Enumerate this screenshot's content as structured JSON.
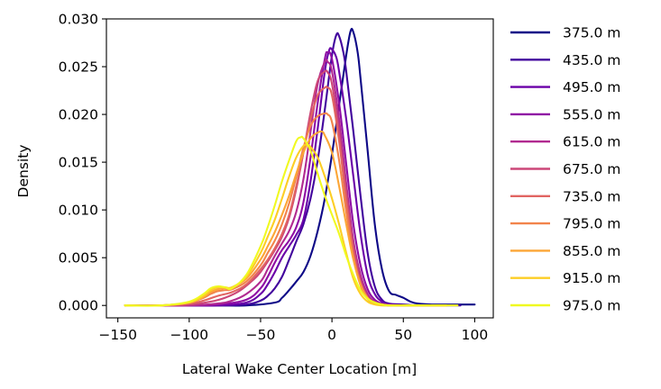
{
  "chart_data": {
    "type": "line",
    "title": "",
    "xlabel": "Lateral Wake Center Location [m]",
    "ylabel": "Density",
    "xlim": [
      -158,
      113
    ],
    "ylim": [
      -0.0013,
      0.03
    ],
    "xticks": [
      -150,
      -100,
      -50,
      0,
      50,
      100
    ],
    "xtick_labels": [
      "−150",
      "−100",
      "−50",
      "0",
      "50",
      "100"
    ],
    "yticks": [
      0.0,
      0.005,
      0.01,
      0.015,
      0.02,
      0.025,
      0.03
    ],
    "ytick_labels": [
      "0.000",
      "0.005",
      "0.010",
      "0.015",
      "0.020",
      "0.025",
      "0.030"
    ],
    "grid": false,
    "legend_position": "outside right",
    "series": [
      {
        "name": "375.0 m",
        "color": "#0d0887",
        "x": [
          -145,
          -120,
          -100,
          -80,
          -60,
          -40,
          -35,
          -30,
          -25,
          -20,
          -15,
          -10,
          -5,
          0,
          5,
          10,
          13,
          15,
          18,
          20,
          25,
          30,
          35,
          40,
          45,
          50,
          55,
          60,
          70,
          80,
          90,
          100
        ],
        "y": [
          0,
          0,
          0,
          0,
          0,
          0.0003,
          0.0008,
          0.0016,
          0.0025,
          0.0035,
          0.0052,
          0.0078,
          0.0112,
          0.0158,
          0.021,
          0.0262,
          0.0287,
          0.0286,
          0.0265,
          0.0238,
          0.0162,
          0.0085,
          0.0038,
          0.0015,
          0.0011,
          0.0008,
          0.0004,
          0.0002,
          0.0001,
          0.0001,
          0.0001,
          0.0001
        ]
      },
      {
        "name": "435.0 m",
        "color": "#41049d",
        "x": [
          -145,
          -120,
          -100,
          -80,
          -60,
          -50,
          -45,
          -40,
          -35,
          -30,
          -25,
          -20,
          -15,
          -10,
          -5,
          0,
          3,
          5,
          8,
          10,
          15,
          20,
          25,
          30,
          35,
          40,
          50,
          60,
          70,
          80,
          90
        ],
        "y": [
          0,
          0,
          0,
          0,
          0.0001,
          0.0005,
          0.001,
          0.0018,
          0.003,
          0.0048,
          0.0067,
          0.0085,
          0.0112,
          0.0152,
          0.0205,
          0.0262,
          0.0283,
          0.0282,
          0.0265,
          0.0245,
          0.0182,
          0.0115,
          0.0055,
          0.002,
          0.0006,
          0.0002,
          0.0001,
          0,
          0,
          0,
          0
        ]
      },
      {
        "name": "495.0 m",
        "color": "#6a00a8",
        "x": [
          -145,
          -120,
          -100,
          -80,
          -60,
          -50,
          -45,
          -40,
          -35,
          -30,
          -25,
          -20,
          -15,
          -10,
          -5,
          -2,
          0,
          3,
          5,
          10,
          15,
          20,
          25,
          30,
          35,
          40,
          50,
          60,
          70,
          80
        ],
        "y": [
          0,
          0,
          0,
          0,
          0.0003,
          0.0012,
          0.0022,
          0.0035,
          0.005,
          0.0062,
          0.0074,
          0.009,
          0.013,
          0.0185,
          0.0245,
          0.0267,
          0.0268,
          0.026,
          0.0245,
          0.0195,
          0.0135,
          0.0075,
          0.0032,
          0.0012,
          0.0004,
          0.0001,
          0,
          0,
          0,
          0
        ]
      },
      {
        "name": "555.0 m",
        "color": "#8f0da4",
        "x": [
          -145,
          -120,
          -100,
          -80,
          -60,
          -50,
          -45,
          -40,
          -35,
          -30,
          -25,
          -20,
          -15,
          -10,
          -5,
          -3,
          0,
          5,
          10,
          15,
          20,
          25,
          30,
          35,
          40,
          50,
          60,
          70,
          80
        ],
        "y": [
          0,
          0,
          0,
          0.0001,
          0.0006,
          0.0018,
          0.003,
          0.0045,
          0.0058,
          0.0068,
          0.0082,
          0.0108,
          0.0155,
          0.0212,
          0.0258,
          0.0265,
          0.0258,
          0.0212,
          0.0148,
          0.0085,
          0.0042,
          0.0017,
          0.0006,
          0.0002,
          0.0001,
          0,
          0,
          0,
          0
        ]
      },
      {
        "name": "615.0 m",
        "color": "#b12a90",
        "x": [
          -145,
          -120,
          -100,
          -80,
          -70,
          -60,
          -50,
          -45,
          -40,
          -35,
          -30,
          -25,
          -20,
          -15,
          -10,
          -5,
          -3,
          0,
          5,
          10,
          15,
          20,
          25,
          30,
          35,
          40,
          50,
          60,
          70,
          80
        ],
        "y": [
          0,
          0,
          0,
          0.0002,
          0.0005,
          0.0012,
          0.0025,
          0.0038,
          0.0052,
          0.0065,
          0.0078,
          0.0098,
          0.0132,
          0.0182,
          0.0232,
          0.0255,
          0.0255,
          0.0245,
          0.0195,
          0.0128,
          0.0068,
          0.0032,
          0.0012,
          0.0004,
          0.0001,
          0,
          0,
          0,
          0,
          0
        ]
      },
      {
        "name": "675.0 m",
        "color": "#cc4778",
        "x": [
          -145,
          -120,
          -100,
          -85,
          -75,
          -65,
          -55,
          -50,
          -45,
          -40,
          -35,
          -30,
          -25,
          -20,
          -15,
          -10,
          -5,
          -3,
          0,
          5,
          10,
          15,
          20,
          25,
          30,
          35,
          40,
          50,
          60,
          70,
          80
        ],
        "y": [
          0,
          0,
          0.0001,
          0.0004,
          0.0008,
          0.0015,
          0.0027,
          0.0035,
          0.0046,
          0.0058,
          0.0072,
          0.0092,
          0.0122,
          0.016,
          0.0202,
          0.0235,
          0.0245,
          0.0244,
          0.0232,
          0.0182,
          0.0118,
          0.0062,
          0.0027,
          0.0009,
          0.0003,
          0.0001,
          0,
          0,
          0,
          0,
          0
        ]
      },
      {
        "name": "735.0 m",
        "color": "#e16462",
        "x": [
          -145,
          -120,
          -100,
          -90,
          -80,
          -70,
          -60,
          -50,
          -45,
          -40,
          -35,
          -30,
          -25,
          -20,
          -15,
          -10,
          -5,
          -3,
          0,
          5,
          10,
          15,
          20,
          25,
          30,
          35,
          40,
          50,
          60,
          70,
          80
        ],
        "y": [
          0,
          0,
          0.0002,
          0.0005,
          0.001,
          0.0014,
          0.0022,
          0.0038,
          0.0048,
          0.006,
          0.0075,
          0.0095,
          0.0125,
          0.016,
          0.0195,
          0.022,
          0.0228,
          0.0228,
          0.022,
          0.0172,
          0.011,
          0.0056,
          0.0023,
          0.0008,
          0.0002,
          0.0001,
          0,
          0,
          0,
          0,
          0
        ]
      },
      {
        "name": "795.0 m",
        "color": "#f2844b",
        "x": [
          -145,
          -120,
          -100,
          -90,
          -85,
          -80,
          -75,
          -70,
          -60,
          -50,
          -45,
          -40,
          -35,
          -30,
          -25,
          -20,
          -15,
          -10,
          -5,
          -3,
          0,
          5,
          10,
          15,
          20,
          25,
          30,
          35,
          40,
          50,
          60,
          70,
          80
        ],
        "y": [
          0,
          0,
          0.0003,
          0.0008,
          0.0012,
          0.0015,
          0.0016,
          0.0017,
          0.0025,
          0.0042,
          0.0055,
          0.0068,
          0.0085,
          0.0107,
          0.0135,
          0.0165,
          0.0188,
          0.0198,
          0.0201,
          0.02,
          0.0192,
          0.0152,
          0.0098,
          0.005,
          0.0021,
          0.0007,
          0.0002,
          0.0001,
          0,
          0,
          0,
          0,
          0
        ]
      },
      {
        "name": "855.0 m",
        "color": "#fca636",
        "x": [
          -145,
          -120,
          -100,
          -90,
          -85,
          -80,
          -75,
          -70,
          -60,
          -50,
          -45,
          -40,
          -35,
          -30,
          -25,
          -20,
          -15,
          -10,
          -7,
          -5,
          0,
          5,
          10,
          15,
          20,
          25,
          30,
          35,
          40,
          50,
          60,
          70,
          80
        ],
        "y": [
          0,
          0,
          0.0003,
          0.0009,
          0.0014,
          0.0017,
          0.0018,
          0.0019,
          0.0028,
          0.0048,
          0.0062,
          0.0077,
          0.0095,
          0.0115,
          0.0138,
          0.016,
          0.0175,
          0.0181,
          0.0182,
          0.0178,
          0.016,
          0.0125,
          0.0085,
          0.0048,
          0.0022,
          0.0008,
          0.0003,
          0.0001,
          0,
          0,
          0,
          0,
          0
        ]
      },
      {
        "name": "915.0 m",
        "color": "#fcce25",
        "x": [
          -145,
          -120,
          -100,
          -90,
          -85,
          -80,
          -75,
          -70,
          -60,
          -50,
          -45,
          -40,
          -35,
          -30,
          -25,
          -20,
          -17,
          -15,
          -10,
          -5,
          0,
          5,
          10,
          15,
          20,
          25,
          30,
          35,
          40,
          50,
          60,
          70,
          80
        ],
        "y": [
          0,
          0,
          0.0003,
          0.001,
          0.0016,
          0.0019,
          0.0019,
          0.0019,
          0.003,
          0.0055,
          0.0072,
          0.009,
          0.0112,
          0.0135,
          0.0155,
          0.0167,
          0.0168,
          0.0166,
          0.0155,
          0.0135,
          0.0112,
          0.0085,
          0.0055,
          0.0028,
          0.0012,
          0.0004,
          0.0001,
          0,
          0,
          0,
          0,
          0,
          0
        ]
      },
      {
        "name": "975.0 m",
        "color": "#f0f921",
        "x": [
          -145,
          -120,
          -100,
          -90,
          -85,
          -80,
          -75,
          -70,
          -60,
          -50,
          -45,
          -40,
          -35,
          -30,
          -25,
          -22,
          -20,
          -15,
          -10,
          -5,
          0,
          5,
          10,
          15,
          20,
          25,
          30,
          35,
          40,
          50,
          60,
          70,
          80,
          88
        ],
        "y": [
          0,
          0,
          0.0004,
          0.0012,
          0.0018,
          0.002,
          0.0019,
          0.0018,
          0.0032,
          0.0062,
          0.0082,
          0.0105,
          0.013,
          0.0152,
          0.0172,
          0.0176,
          0.0175,
          0.0162,
          0.0138,
          0.0115,
          0.0095,
          0.0075,
          0.0052,
          0.0032,
          0.0016,
          0.0007,
          0.0003,
          0.0001,
          0,
          0,
          0,
          0,
          0,
          0
        ]
      }
    ]
  }
}
